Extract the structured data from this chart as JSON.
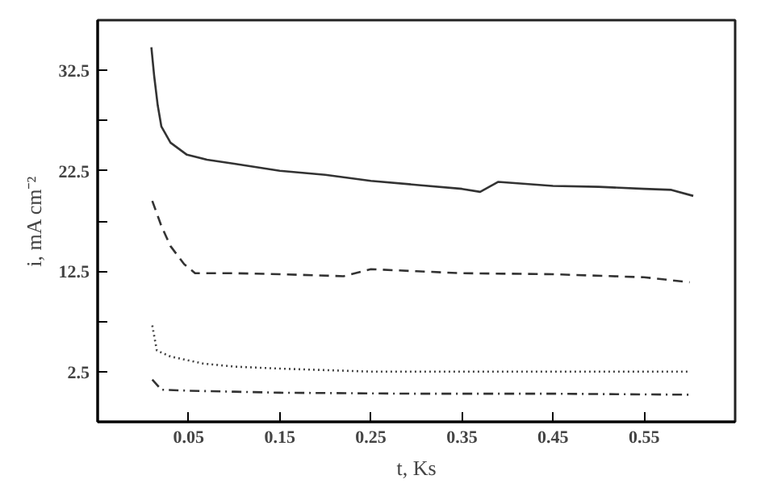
{
  "chart_data": {
    "type": "line",
    "xlabel": "t, Ks",
    "ylabel": "i, mA cm⁻²",
    "xlim": [
      -0.05,
      0.65
    ],
    "xticks": [
      0.05,
      0.15,
      0.25,
      0.35,
      0.45,
      0.55
    ],
    "ylim": [
      -2.5,
      37.5
    ],
    "yticks": [
      2.5,
      {
        "value": 7.5,
        "label": null
      },
      12.5,
      {
        "value": 17.5,
        "label": null
      },
      22.5,
      {
        "value": 27.5,
        "label": null
      },
      32.5
    ],
    "grid": false,
    "marker": "none",
    "series": [
      {
        "color": "#333333",
        "line_style": "solid",
        "x": [
          0.009,
          0.012,
          0.016,
          0.02,
          0.03,
          0.048,
          0.07,
          0.1,
          0.15,
          0.2,
          0.25,
          0.3,
          0.35,
          0.37,
          0.39,
          0.42,
          0.45,
          0.5,
          0.55,
          0.58,
          0.604
        ],
        "values": [
          34.8,
          32.0,
          29.0,
          26.9,
          25.3,
          24.1,
          23.6,
          23.2,
          22.5,
          22.1,
          21.5,
          21.1,
          20.7,
          20.4,
          21.4,
          21.2,
          21.0,
          20.9,
          20.7,
          20.6,
          20.0
        ]
      },
      {
        "color": "#333333",
        "line_style": "dashed",
        "x": [
          0.01,
          0.02,
          0.03,
          0.045,
          0.057,
          0.1,
          0.15,
          0.22,
          0.25,
          0.3,
          0.35,
          0.45,
          0.55,
          0.6
        ],
        "values": [
          19.5,
          17.0,
          15.0,
          13.2,
          12.3,
          12.3,
          12.2,
          12.0,
          12.7,
          12.5,
          12.3,
          12.2,
          11.9,
          11.4
        ]
      },
      {
        "color": "#444444",
        "line_style": "dotted",
        "x": [
          0.01,
          0.015,
          0.03,
          0.066,
          0.1,
          0.15,
          0.25,
          0.35,
          0.45,
          0.55,
          0.6
        ],
        "values": [
          7.1,
          4.6,
          4.0,
          3.3,
          3.0,
          2.8,
          2.5,
          2.5,
          2.5,
          2.5,
          2.5
        ]
      },
      {
        "color": "#333333",
        "line_style": "dashdot",
        "x": [
          0.01,
          0.02,
          0.05,
          0.1,
          0.15,
          0.3,
          0.45,
          0.6
        ],
        "values": [
          1.7,
          0.7,
          0.6,
          0.5,
          0.4,
          0.3,
          0.3,
          0.2
        ]
      }
    ]
  }
}
